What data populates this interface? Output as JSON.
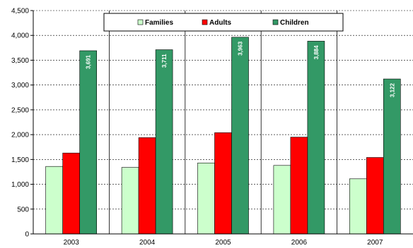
{
  "chart_data": {
    "type": "bar",
    "categories": [
      "2003",
      "2004",
      "2005",
      "2006",
      "2007"
    ],
    "series": [
      {
        "name": "Families",
        "color": "#ccffcc",
        "values": [
          1360,
          1340,
          1430,
          1380,
          1110
        ]
      },
      {
        "name": "Adults",
        "color": "#ff0000",
        "values": [
          1630,
          1940,
          2040,
          1950,
          1540
        ]
      },
      {
        "name": "Children",
        "color": "#339966",
        "values": [
          3691,
          3711,
          3963,
          3884,
          3122
        ],
        "data_labels": [
          "3,691",
          "3,711",
          "3,963",
          "3,884",
          "3,122"
        ]
      }
    ],
    "ylim": [
      0,
      4500
    ],
    "yticks": [
      0,
      500,
      1000,
      1500,
      2000,
      2500,
      3000,
      3500,
      4000,
      4500
    ],
    "ytick_labels": [
      "0",
      "500",
      "1,000",
      "1,500",
      "2,000",
      "2,500",
      "3,000",
      "3,500",
      "4,000",
      "4,500"
    ],
    "grid": "horizontal dashed",
    "legend": "top-center"
  }
}
